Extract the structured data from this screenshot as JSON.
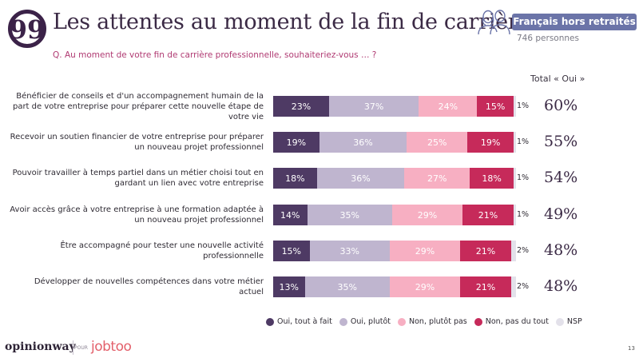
{
  "header": {
    "icon": "quote-icon",
    "title": "Les attentes au moment de la fin de carrière",
    "question": "Q. Au moment de votre fin de carrière professionnelle, souhaiteriez-vous … ?"
  },
  "population": {
    "icon": "people-icon",
    "badge": "Français hors retraités",
    "count": "746 personnes"
  },
  "total_header": "Total « Oui »",
  "colors": {
    "oui_tout_a_fait": "#4e3a64",
    "oui_plutot": "#bfb5cf",
    "non_plutot_pas": "#f7afc2",
    "non_pas_du_tout": "#c62a5a",
    "nsp": "#e3e1ea",
    "badge": "#6b74a8",
    "question_text": "#b03a72"
  },
  "chart_data": {
    "type": "bar",
    "orientation": "horizontal",
    "stacked": true,
    "title": "Les attentes au moment de la fin de carrière",
    "xlabel": "",
    "ylabel": "",
    "xlim": [
      0,
      100
    ],
    "grid": false,
    "legend_position": "bottom",
    "categories": [
      "Bénéficier de conseils et d'un accompagnement humain de la part de votre entreprise pour préparer cette nouvelle étape de votre vie",
      "Recevoir un soutien financier de votre entreprise pour préparer un nouveau projet professionnel",
      "Pouvoir travailler à temps partiel dans un métier choisi tout en gardant un lien avec votre entreprise",
      "Avoir accès grâce à votre entreprise à une formation adaptée à un nouveau projet professionnel",
      "Être accompagné pour tester une nouvelle activité professionnelle",
      "Développer de nouvelles compétences dans votre métier actuel"
    ],
    "series": [
      {
        "name": "Oui, tout à fait",
        "color": "#4e3a64",
        "values": [
          23,
          19,
          18,
          14,
          15,
          13
        ]
      },
      {
        "name": "Oui, plutôt",
        "color": "#bfb5cf",
        "values": [
          37,
          36,
          36,
          35,
          33,
          35
        ]
      },
      {
        "name": "Non, plutôt pas",
        "color": "#f7afc2",
        "values": [
          24,
          25,
          27,
          29,
          29,
          29
        ]
      },
      {
        "name": "Non, pas du tout",
        "color": "#c62a5a",
        "values": [
          15,
          19,
          18,
          21,
          21,
          21
        ]
      },
      {
        "name": "NSP",
        "color": "#e3e1ea",
        "values": [
          1,
          1,
          1,
          1,
          2,
          2
        ]
      }
    ],
    "totals_label": "Total « Oui »",
    "totals": [
      60,
      55,
      54,
      49,
      48,
      48
    ],
    "value_suffix": "%"
  },
  "footer": {
    "logo": "opinionway",
    "pour": "POUR",
    "partner": "jobtoo",
    "page_number": "13"
  }
}
